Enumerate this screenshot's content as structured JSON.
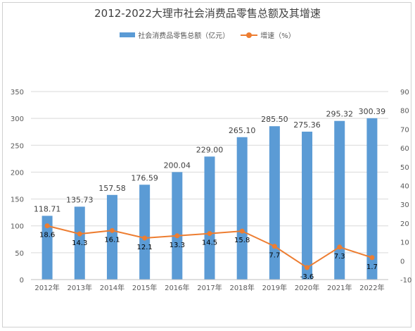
{
  "title": "2012-2022大理市社会消费品零售总额及其增速",
  "legend": {
    "bar_label": "社会消费品零售总额（亿元）",
    "line_label": "增速（%）"
  },
  "colors": {
    "bar": "#5b9bd5",
    "line": "#ed7d31",
    "grid": "#d9d9d9",
    "axis": "#bfbfbf"
  },
  "chart_data": {
    "type": "bar+line",
    "title": "2012-2022大理市社会消费品零售总额及其增速",
    "categories": [
      "2012年",
      "2013年",
      "2014年",
      "2015年",
      "2016年",
      "2017年",
      "2018年",
      "2019年",
      "2020年",
      "2021年",
      "2022年"
    ],
    "series": [
      {
        "name": "社会消费品零售总额（亿元）",
        "type": "bar",
        "axis": "left",
        "values": [
          118.71,
          135.73,
          157.58,
          176.59,
          200.04,
          229.0,
          265.1,
          285.5,
          275.36,
          295.32,
          300.39
        ],
        "labels": [
          "118.71",
          "135.73",
          "157.58",
          "176.59",
          "200.04",
          "229.00",
          "265.10",
          "285.50",
          "275.36",
          "295.32",
          "300.39"
        ]
      },
      {
        "name": "增速（%）",
        "type": "line",
        "axis": "right",
        "values": [
          18.6,
          14.3,
          16.1,
          12.1,
          13.3,
          14.5,
          15.8,
          7.7,
          -3.6,
          7.3,
          1.7
        ],
        "labels": [
          "18.6",
          "14.3",
          "16.1",
          "12.1",
          "13.3",
          "14.5",
          "15.8",
          "7.7",
          "-3.6",
          "7.3",
          "1.7"
        ]
      }
    ],
    "y_left": {
      "range": [
        0,
        350
      ],
      "ticks": [
        "0",
        "50",
        "100",
        "150",
        "200",
        "250",
        "300",
        "350"
      ]
    },
    "y_right": {
      "range": [
        -10,
        90
      ],
      "ticks": [
        "-10",
        "0",
        "10",
        "20",
        "30",
        "40",
        "50",
        "60",
        "70",
        "80",
        "90"
      ]
    },
    "grid": true,
    "legend_position": "top"
  }
}
